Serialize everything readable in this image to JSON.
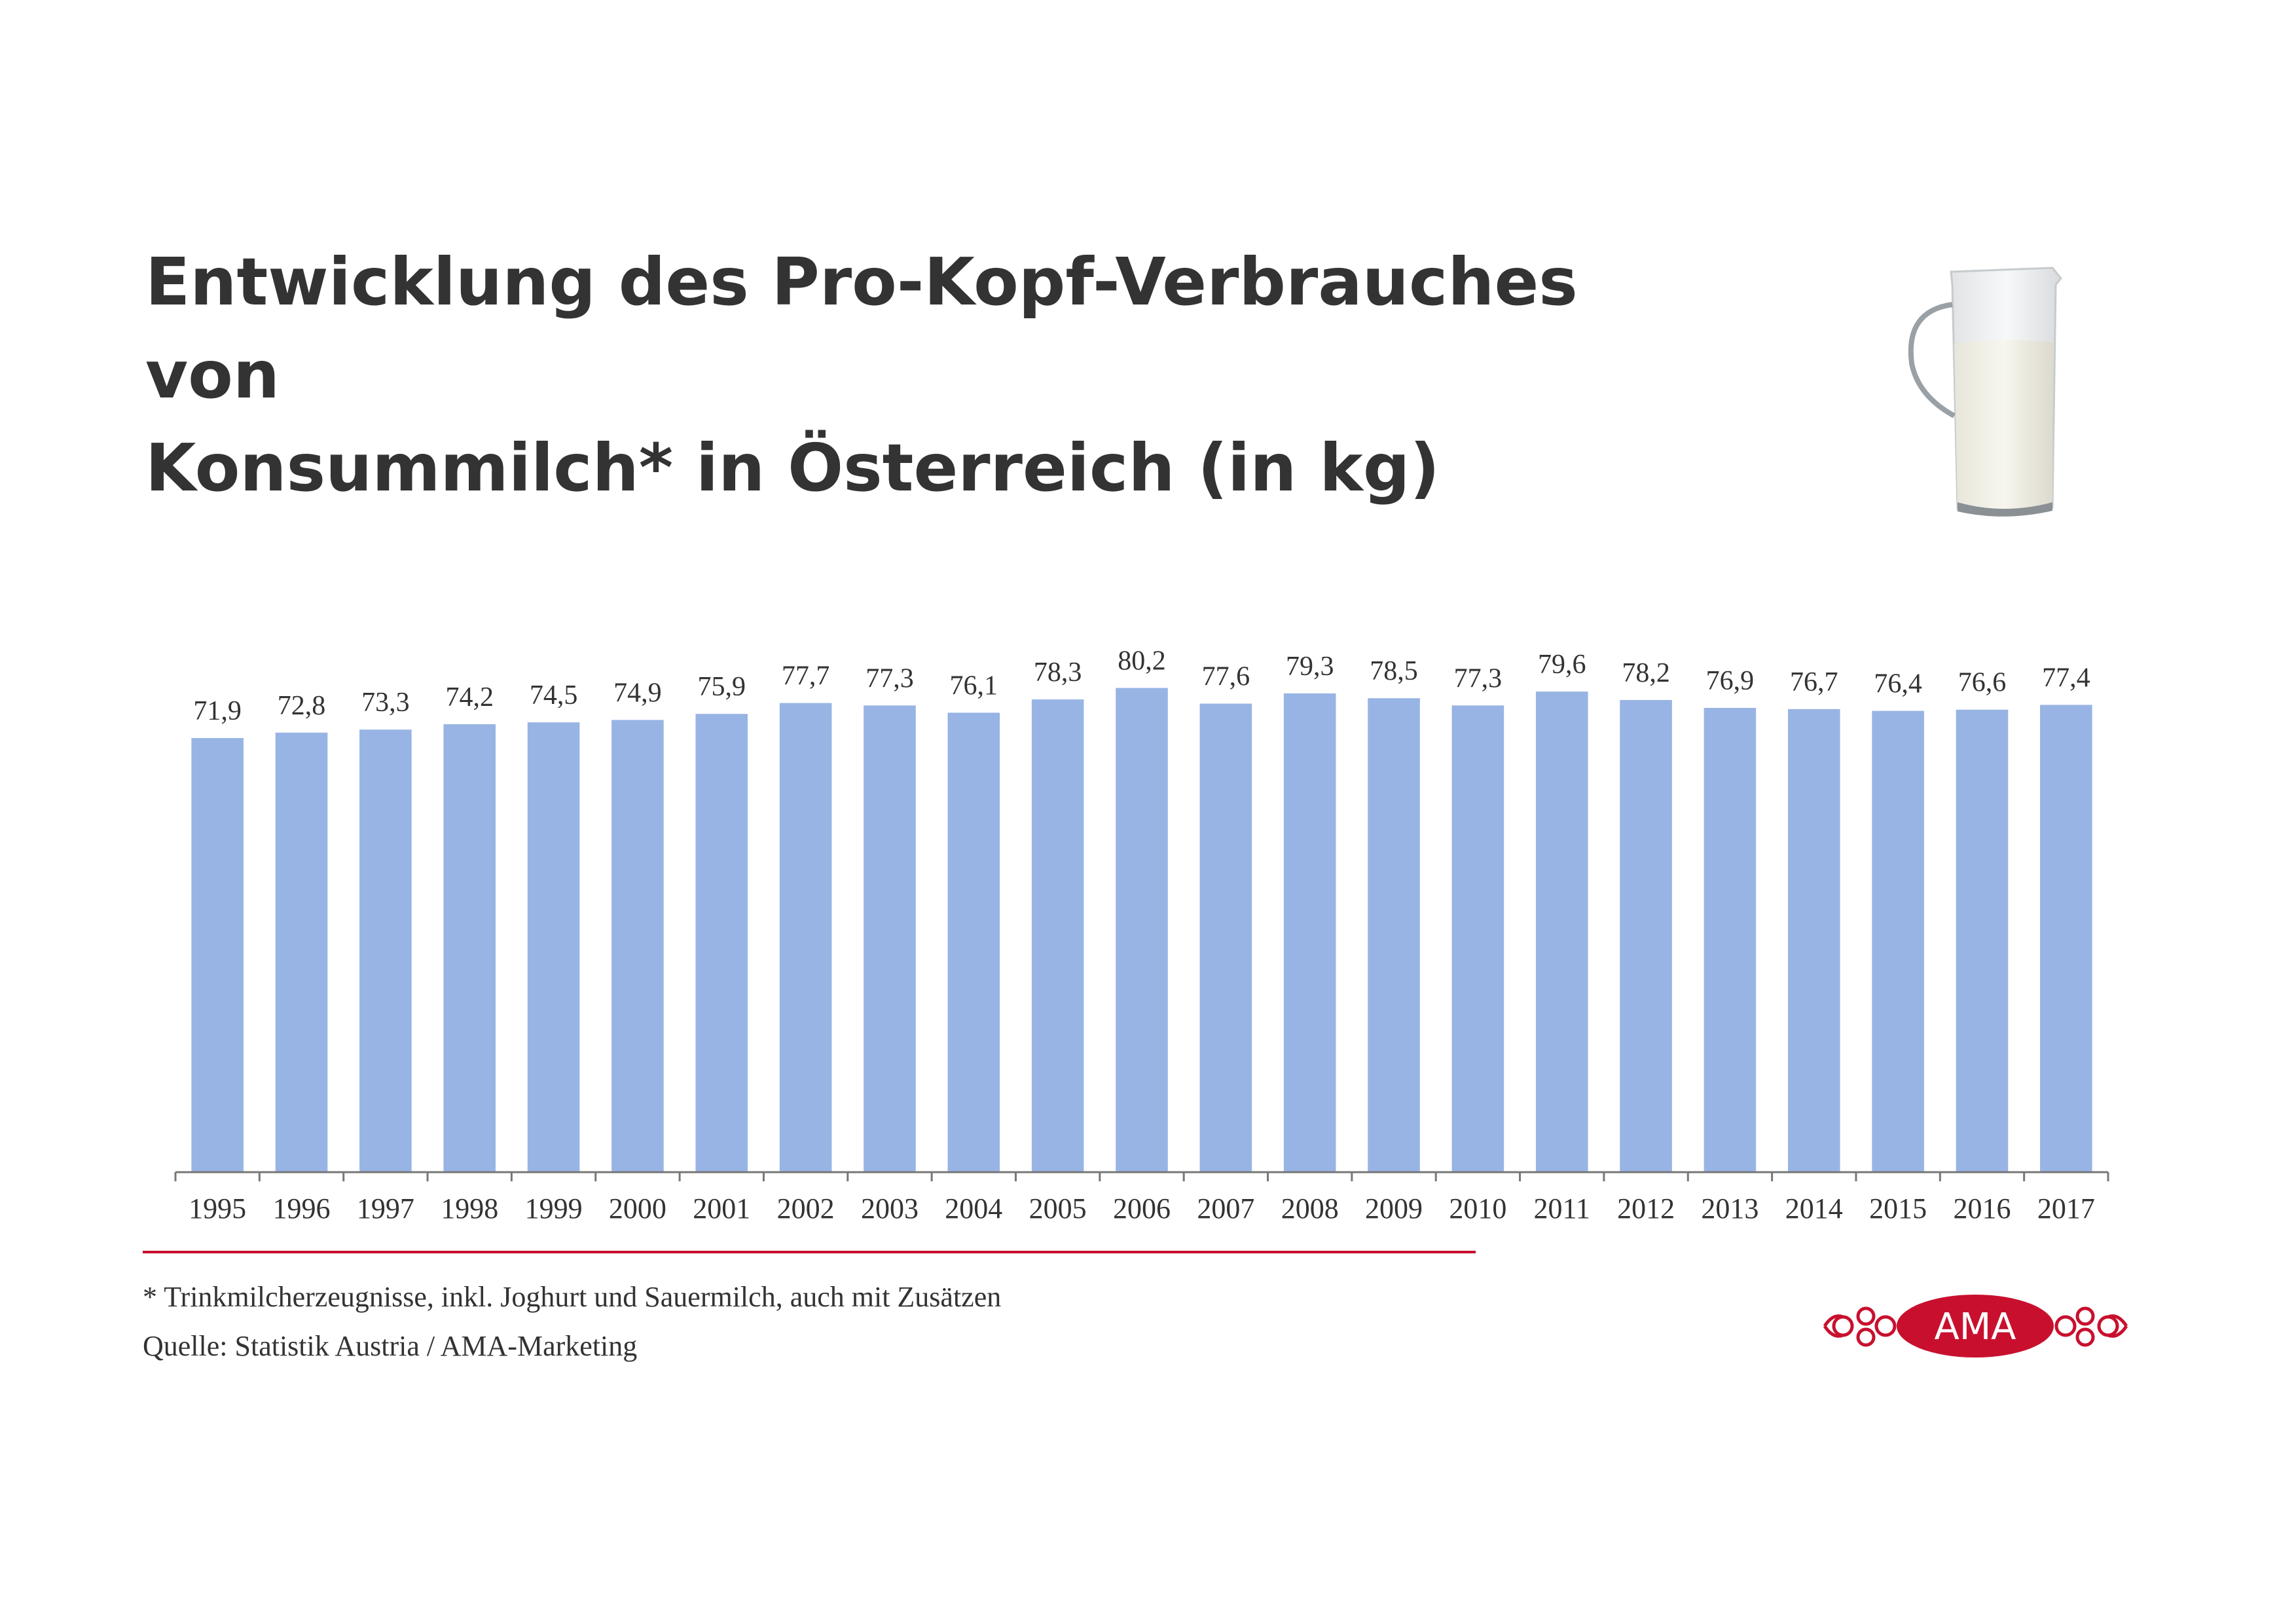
{
  "title": {
    "line1": "Entwicklung des Pro-Kopf-Verbrauches von",
    "line2": "Konsummilch* in Österreich (in kg)"
  },
  "footnote": "* Trinkmilcherzeugnisse, inkl. Joghurt und Sauermilch, auch mit Zusätzen",
  "source": "Quelle: Statistik Austria / AMA-Marketing",
  "logo": {
    "text": "AMA",
    "color": "#c8102e"
  },
  "colors": {
    "bar": "#98b4e4",
    "rule": "#c8102e",
    "text": "#333333"
  },
  "icons": {
    "pitcher": "milk-pitcher-icon"
  },
  "chart_data": {
    "type": "bar",
    "title": "",
    "xlabel": "",
    "ylabel": "",
    "categories": [
      "1995",
      "1996",
      "1997",
      "1998",
      "1999",
      "2000",
      "2001",
      "2002",
      "2003",
      "2004",
      "2005",
      "2006",
      "2007",
      "2008",
      "2009",
      "2010",
      "2011",
      "2012",
      "2013",
      "2014",
      "2015",
      "2016",
      "2017"
    ],
    "values": [
      71.9,
      72.8,
      73.3,
      74.2,
      74.5,
      74.9,
      75.9,
      77.7,
      77.3,
      76.1,
      78.3,
      80.2,
      77.6,
      79.3,
      78.5,
      77.3,
      79.6,
      78.2,
      76.9,
      76.7,
      76.4,
      76.6,
      77.4
    ],
    "value_labels": [
      "71,9",
      "72,8",
      "73,3",
      "74,2",
      "74,5",
      "74,9",
      "75,9",
      "77,7",
      "77,3",
      "76,1",
      "78,3",
      "80,2",
      "77,6",
      "79,3",
      "78,5",
      "77,3",
      "79,6",
      "78,2",
      "76,9",
      "76,7",
      "76,4",
      "76,6",
      "77,4"
    ],
    "grid": false,
    "legend": "none"
  }
}
